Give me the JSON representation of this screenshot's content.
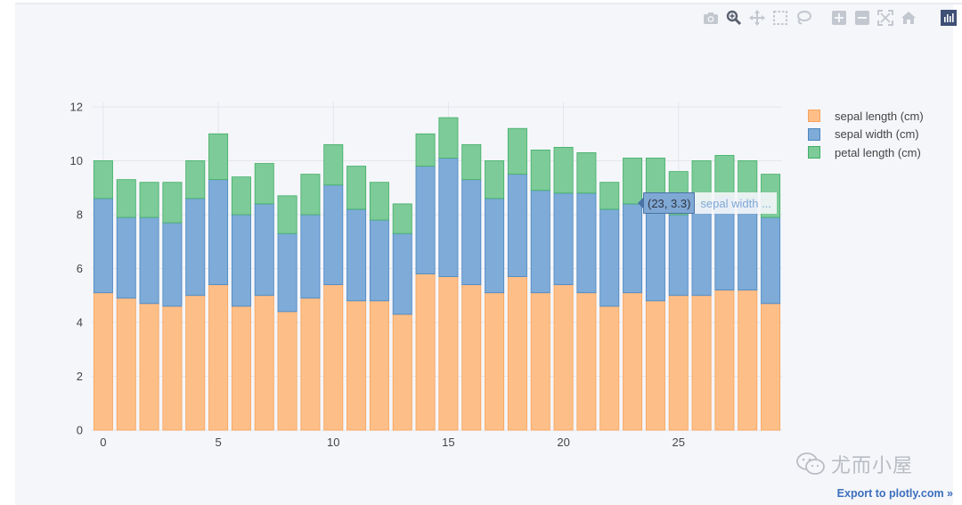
{
  "chart_data": {
    "type": "bar",
    "barmode": "stack",
    "x": [
      0,
      1,
      2,
      3,
      4,
      5,
      6,
      7,
      8,
      9,
      10,
      11,
      12,
      13,
      14,
      15,
      16,
      17,
      18,
      19,
      20,
      21,
      22,
      23,
      24,
      25,
      26,
      27,
      28,
      29
    ],
    "series": [
      {
        "name": "sepal length (cm)",
        "color": "#fdbf87",
        "line": "#f7a25b",
        "values": [
          5.1,
          4.9,
          4.7,
          4.6,
          5.0,
          5.4,
          4.6,
          5.0,
          4.4,
          4.9,
          5.4,
          4.8,
          4.8,
          4.3,
          5.8,
          5.7,
          5.4,
          5.1,
          5.7,
          5.1,
          5.4,
          5.1,
          4.6,
          5.1,
          4.8,
          5.0,
          5.0,
          5.2,
          5.2,
          4.7
        ]
      },
      {
        "name": "sepal width (cm)",
        "color": "#7eabd7",
        "line": "#4a86c2",
        "values": [
          3.5,
          3.0,
          3.2,
          3.1,
          3.6,
          3.9,
          3.4,
          3.4,
          2.9,
          3.1,
          3.7,
          3.4,
          3.0,
          3.0,
          4.0,
          4.4,
          3.9,
          3.5,
          3.8,
          3.8,
          3.4,
          3.7,
          3.6,
          3.3,
          3.4,
          3.0,
          3.4,
          3.5,
          3.4,
          3.2
        ]
      },
      {
        "name": "petal length (cm)",
        "color": "#7dcb98",
        "line": "#3fae67",
        "values": [
          1.4,
          1.4,
          1.3,
          1.5,
          1.4,
          1.7,
          1.4,
          1.5,
          1.4,
          1.5,
          1.5,
          1.6,
          1.4,
          1.1,
          1.2,
          1.5,
          1.3,
          1.4,
          1.7,
          1.5,
          1.7,
          1.5,
          1.0,
          1.7,
          1.9,
          1.6,
          1.6,
          1.5,
          1.4,
          1.6
        ]
      }
    ],
    "ylim": [
      0,
      12
    ],
    "xlim": [
      -0.5,
      29.5
    ],
    "y_ticks": [
      "0",
      "2",
      "4",
      "6",
      "8",
      "10",
      "12"
    ],
    "x_ticks": [
      "0",
      "5",
      "10",
      "15",
      "20",
      "25"
    ],
    "legend_position": "top-right",
    "grid": true
  },
  "tooltip": {
    "coords": "(23, 3.3)",
    "name": "sepal width ..."
  },
  "export_link": "Export to plotly.com »",
  "watermark": "尤而小屋",
  "modebar": {
    "buttons": [
      "camera-icon",
      "zoom-icon",
      "pan-icon",
      "box-select-icon",
      "lasso-icon",
      "zoom-in-icon",
      "zoom-out-icon",
      "autoscale-icon",
      "home-icon",
      "plotly-logo-icon"
    ]
  }
}
